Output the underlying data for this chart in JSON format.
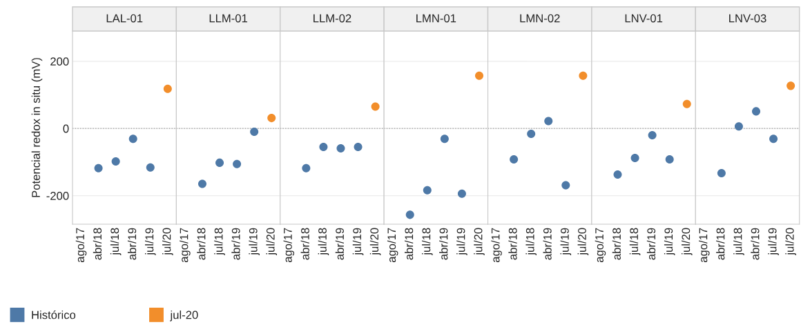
{
  "chart_data": [
    {
      "type": "scatter",
      "title": "LAL-01",
      "ylabel": "Potencial redox in situ (mV)",
      "categories": [
        "ago/17",
        "abr/18",
        "jul/18",
        "abr/19",
        "jul/19",
        "jul/20"
      ],
      "ylim": [
        -285,
        290
      ],
      "yticks": [
        -200,
        0,
        200
      ],
      "grid": "y",
      "marker": "circle",
      "legend": "bottom",
      "ref_lines": [
        {
          "axis": "y",
          "value": 0,
          "line_style": "dotted",
          "color": "#aaaaaa"
        }
      ],
      "series": [
        {
          "name": "Histórico",
          "color": "#4e79a7",
          "values": [
            null,
            -118,
            -98,
            -31,
            -116,
            null
          ]
        },
        {
          "name": "jul-20",
          "color": "#f28e2b",
          "values": [
            null,
            null,
            null,
            null,
            null,
            118
          ]
        }
      ]
    },
    {
      "type": "scatter",
      "title": "LLM-01",
      "categories": [
        "ago/17",
        "abr/18",
        "jul/18",
        "abr/19",
        "jul/19",
        "jul/20"
      ],
      "ylim": [
        -285,
        290
      ],
      "yticks": [
        -200,
        0,
        200
      ],
      "tick_labels": "x",
      "grid": "y",
      "marker": "circle",
      "ref_lines": [
        {
          "axis": "y",
          "value": 0,
          "line_style": "dotted",
          "color": "#aaaaaa"
        }
      ],
      "series": [
        {
          "color": "#4e79a7",
          "values": [
            null,
            -165,
            -102,
            -106,
            -10,
            null
          ]
        },
        {
          "color": "#f28e2b",
          "values": [
            null,
            null,
            null,
            null,
            null,
            31
          ]
        }
      ]
    },
    {
      "type": "scatter",
      "title": "LLM-02",
      "categories": [
        "ago/17",
        "abr/18",
        "jul/18",
        "abr/19",
        "jul/19",
        "jul/20"
      ],
      "ylim": [
        -285,
        290
      ],
      "yticks": [
        -200,
        0,
        200
      ],
      "tick_labels": "x",
      "grid": "y",
      "marker": "circle",
      "ref_lines": [
        {
          "axis": "y",
          "value": 0,
          "line_style": "dotted",
          "color": "#aaaaaa"
        }
      ],
      "series": [
        {
          "color": "#4e79a7",
          "values": [
            null,
            -118,
            -55,
            -59,
            -55,
            null
          ]
        },
        {
          "color": "#f28e2b",
          "values": [
            null,
            null,
            null,
            null,
            null,
            65
          ]
        }
      ]
    },
    {
      "type": "scatter",
      "title": "LMN-01",
      "categories": [
        "ago/17",
        "abr/18",
        "jul/18",
        "abr/19",
        "jul/19",
        "jul/20"
      ],
      "ylim": [
        -285,
        290
      ],
      "yticks": [
        -200,
        0,
        200
      ],
      "tick_labels": "x",
      "grid": "y",
      "marker": "circle",
      "ref_lines": [
        {
          "axis": "y",
          "value": 0,
          "line_style": "dotted",
          "color": "#aaaaaa"
        }
      ],
      "series": [
        {
          "color": "#4e79a7",
          "values": [
            null,
            -257,
            -184,
            -31,
            -194,
            null
          ]
        },
        {
          "color": "#f28e2b",
          "values": [
            null,
            null,
            null,
            null,
            null,
            157
          ]
        }
      ]
    },
    {
      "type": "scatter",
      "title": "LMN-02",
      "categories": [
        "ago/17",
        "abr/18",
        "jul/18",
        "abr/19",
        "jul/19",
        "jul/20"
      ],
      "ylim": [
        -285,
        290
      ],
      "yticks": [
        -200,
        0,
        200
      ],
      "tick_labels": "x",
      "grid": "y",
      "marker": "circle",
      "ref_lines": [
        {
          "axis": "y",
          "value": 0,
          "line_style": "dotted",
          "color": "#aaaaaa"
        }
      ],
      "series": [
        {
          "color": "#4e79a7",
          "values": [
            null,
            -92,
            -16,
            22,
            -169,
            null
          ]
        },
        {
          "color": "#f28e2b",
          "values": [
            null,
            null,
            null,
            null,
            null,
            157
          ]
        }
      ]
    },
    {
      "type": "scatter",
      "title": "LNV-01",
      "categories": [
        "ago/17",
        "abr/18",
        "jul/18",
        "abr/19",
        "jul/19",
        "jul/20"
      ],
      "ylim": [
        -285,
        290
      ],
      "yticks": [
        -200,
        0,
        200
      ],
      "tick_labels": "x",
      "grid": "y",
      "marker": "circle",
      "ref_lines": [
        {
          "axis": "y",
          "value": 0,
          "line_style": "dotted",
          "color": "#aaaaaa"
        }
      ],
      "series": [
        {
          "color": "#4e79a7",
          "values": [
            null,
            -137,
            -88,
            -20,
            -92,
            null
          ]
        },
        {
          "color": "#f28e2b",
          "values": [
            null,
            null,
            null,
            null,
            null,
            73
          ]
        }
      ]
    },
    {
      "type": "scatter",
      "title": "LNV-03",
      "categories": [
        "ago/17",
        "abr/18",
        "jul/18",
        "abr/19",
        "jul/19",
        "jul/20"
      ],
      "ylim": [
        -285,
        290
      ],
      "yticks": [
        -200,
        0,
        200
      ],
      "tick_labels": "x",
      "grid": "y",
      "marker": "circle",
      "ref_lines": [
        {
          "axis": "y",
          "value": 0,
          "line_style": "dotted",
          "color": "#aaaaaa"
        }
      ],
      "series": [
        {
          "color": "#4e79a7",
          "values": [
            null,
            -133,
            6,
            51,
            -31,
            null
          ]
        },
        {
          "color": "#f28e2b",
          "values": [
            null,
            null,
            null,
            null,
            null,
            127
          ]
        }
      ]
    }
  ]
}
